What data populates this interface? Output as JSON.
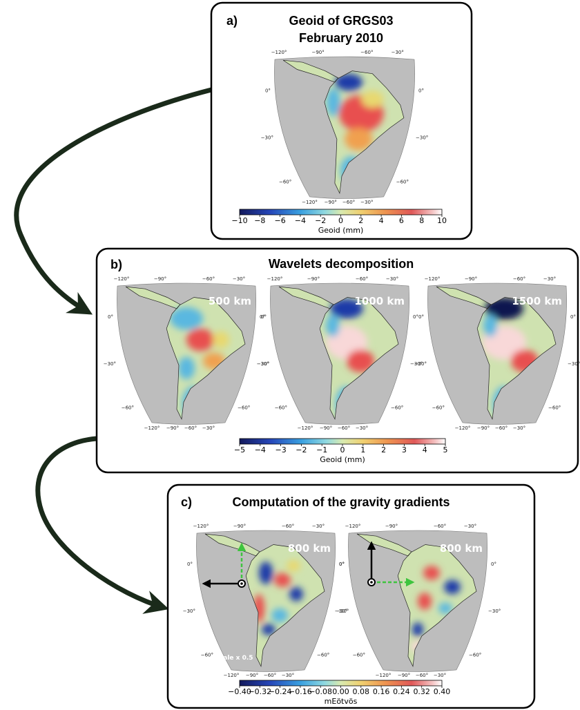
{
  "graticule": {
    "top": [
      "−120°",
      "−90°",
      "−60°",
      "−30°"
    ],
    "sides": [
      "0°",
      "−30°",
      "−60°"
    ],
    "bottom": [
      "−120°",
      "−90°",
      "−60°",
      "−30°"
    ]
  },
  "panel_a": {
    "label": "a)",
    "title_lines": [
      "Geoid of GRGS03",
      "February 2010"
    ],
    "colorbar": {
      "ticks": [
        "−10",
        "−8",
        "−6",
        "−4",
        "−2",
        "0",
        "2",
        "4",
        "6",
        "8",
        "10"
      ],
      "label": "Geoid (mm)"
    }
  },
  "panel_b": {
    "label": "b)",
    "title": "Wavelets decomposition",
    "maps": [
      {
        "scale": "500 km"
      },
      {
        "scale": "1000 km"
      },
      {
        "scale": "1500 km"
      }
    ],
    "colorbar": {
      "ticks": [
        "−5",
        "−4",
        "−3",
        "−2",
        "−1",
        "0",
        "1",
        "2",
        "3",
        "4",
        "5"
      ],
      "label": "Geoid (mm)"
    }
  },
  "panel_c": {
    "label": "c)",
    "title": "Computation of the gravity gradients",
    "maps": [
      {
        "scale": "800 km",
        "note": "Scale x 0.5"
      },
      {
        "scale": "800 km"
      }
    ],
    "colorbar": {
      "ticks": [
        "−0.40",
        "−0.32",
        "−0.24",
        "−0.16",
        "−0.08",
        "0.00",
        "0.08",
        "0.16",
        "0.24",
        "0.32",
        "0.40"
      ],
      "label": "mEötvös"
    }
  }
}
